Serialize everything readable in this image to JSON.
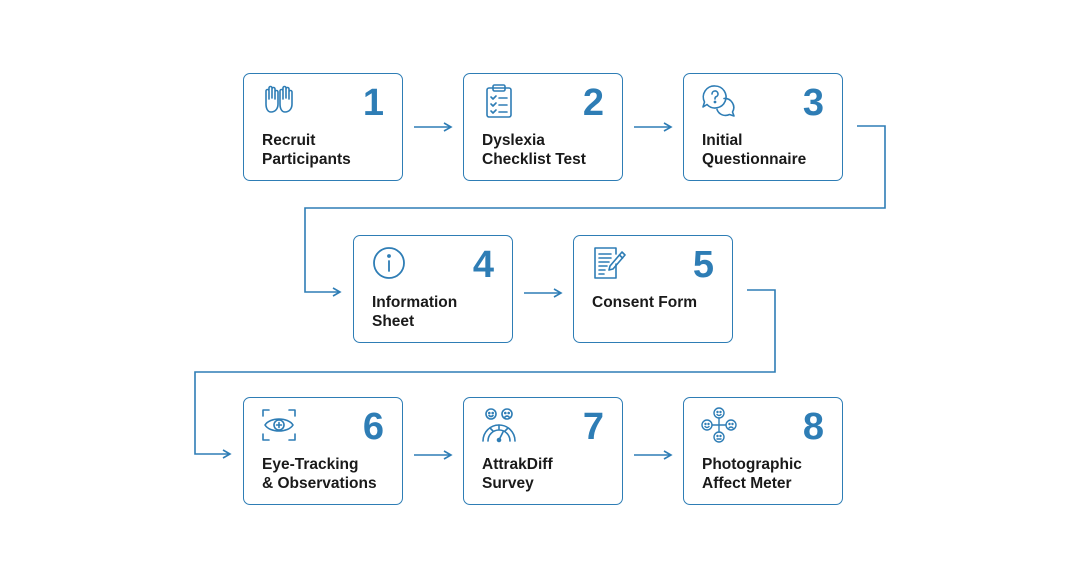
{
  "colors": {
    "accent": "#2E7DB5",
    "text": "#1a1a1a",
    "background": "#ffffff"
  },
  "steps": [
    {
      "number": "1",
      "label": "Recruit\nParticipants",
      "icon": "raised-hands-icon"
    },
    {
      "number": "2",
      "label": "Dyslexia\nChecklist Test",
      "icon": "clipboard-checklist-icon"
    },
    {
      "number": "3",
      "label": "Initial\nQuestionnaire",
      "icon": "question-speech-bubbles-icon"
    },
    {
      "number": "4",
      "label": "Information\nSheet",
      "icon": "info-circle-icon"
    },
    {
      "number": "5",
      "label": "Consent Form",
      "icon": "document-pen-icon"
    },
    {
      "number": "6",
      "label": "Eye-Tracking\n& Observations",
      "icon": "eye-scan-icon"
    },
    {
      "number": "7",
      "label": "AttrakDiff\nSurvey",
      "icon": "emotion-gauge-icon"
    },
    {
      "number": "8",
      "label": "Photographic\nAffect Meter",
      "icon": "faces-grid-icon"
    }
  ]
}
